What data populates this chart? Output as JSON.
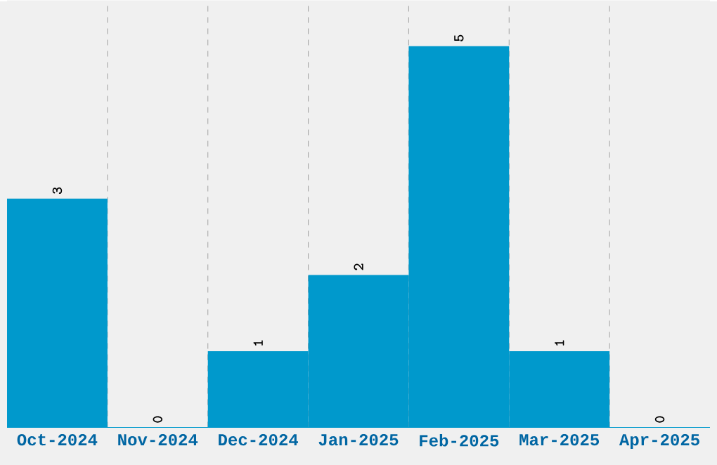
{
  "chart_data": {
    "type": "bar",
    "categories": [
      "Oct-2024",
      "Nov-2024",
      "Dec-2024",
      "Jan-2025",
      "Feb-2025",
      "Mar-2025",
      "Apr-2025"
    ],
    "values": [
      3,
      0,
      1,
      2,
      5,
      1,
      0
    ],
    "color": "#0099cc",
    "grid": "x",
    "data_labels": true
  }
}
